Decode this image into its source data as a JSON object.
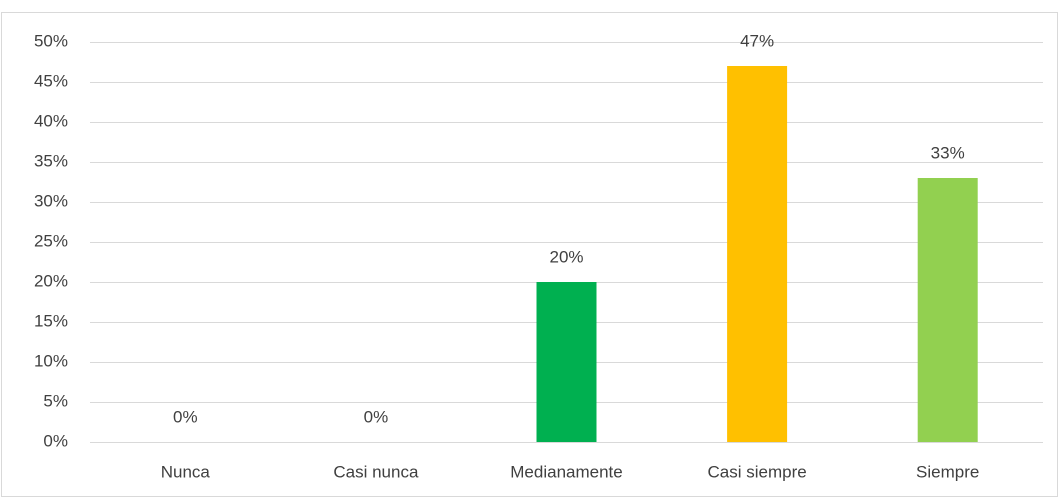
{
  "chart_data": {
    "type": "bar",
    "categories": [
      "Nunca",
      "Casi nunca",
      "Medianamente",
      "Casi siempre",
      "Siempre"
    ],
    "values": [
      0,
      0,
      20,
      47,
      33
    ],
    "value_labels": [
      "0%",
      "0%",
      "20%",
      "47%",
      "33%"
    ],
    "colors": [
      null,
      null,
      "#00b050",
      "#ffc000",
      "#92d050"
    ],
    "ylim": [
      0,
      50
    ],
    "yticks": [
      {
        "value": 0,
        "label": "0%"
      },
      {
        "value": 5,
        "label": "5%"
      },
      {
        "value": 10,
        "label": "10%"
      },
      {
        "value": 15,
        "label": "15%"
      },
      {
        "value": 20,
        "label": "20%"
      },
      {
        "value": 25,
        "label": "25%"
      },
      {
        "value": 30,
        "label": "30%"
      },
      {
        "value": 35,
        "label": "35%"
      },
      {
        "value": 40,
        "label": "40%"
      },
      {
        "value": 45,
        "label": "45%"
      },
      {
        "value": 50,
        "label": "50%"
      }
    ],
    "grid": true
  }
}
